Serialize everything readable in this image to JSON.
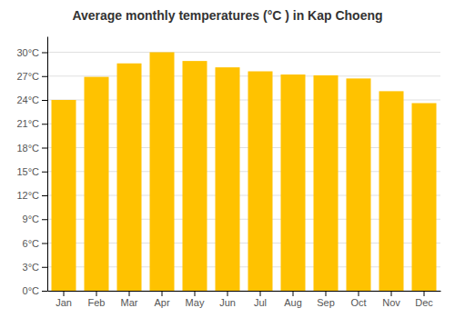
{
  "chart_data": {
    "type": "bar",
    "title": "Average monthly temperatures (°C ) in Kap Choeng",
    "categories": [
      "Jan",
      "Feb",
      "Mar",
      "Apr",
      "May",
      "Jun",
      "Jul",
      "Aug",
      "Sep",
      "Oct",
      "Nov",
      "Dec"
    ],
    "values": [
      24.0,
      26.9,
      28.6,
      30.0,
      28.9,
      28.1,
      27.6,
      27.2,
      27.1,
      26.7,
      25.1,
      23.6
    ],
    "color": "#FFC200",
    "ylim": [
      0,
      32
    ],
    "yticks": [
      {
        "value": 0,
        "label": "0°C"
      },
      {
        "value": 3,
        "label": "3°C"
      },
      {
        "value": 6,
        "label": "6°C"
      },
      {
        "value": 9,
        "label": "9°C"
      },
      {
        "value": 12,
        "label": "12°C"
      },
      {
        "value": 15,
        "label": "15°C"
      },
      {
        "value": 18,
        "label": "18°C"
      },
      {
        "value": 21,
        "label": "21°C"
      },
      {
        "value": 24,
        "label": "24°C"
      },
      {
        "value": 27,
        "label": "27°C"
      },
      {
        "value": 30,
        "label": "30°C"
      }
    ],
    "grid": true
  }
}
